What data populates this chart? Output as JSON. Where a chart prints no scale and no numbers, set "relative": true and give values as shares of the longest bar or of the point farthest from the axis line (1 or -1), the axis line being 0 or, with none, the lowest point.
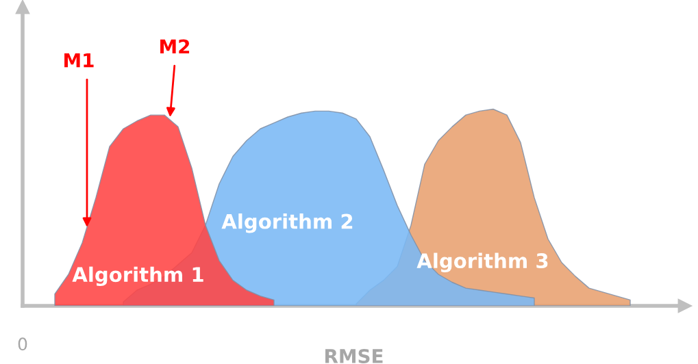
{
  "chart_data": {
    "type": "area",
    "relative": true,
    "xlabel": "RMSE",
    "annotations": [
      "M1",
      "M2",
      "0"
    ],
    "categories": [
      null,
      null,
      null,
      null,
      null,
      null,
      null,
      null,
      null,
      null,
      null,
      null,
      null,
      null,
      null,
      null,
      null,
      null,
      null,
      null,
      null,
      null,
      null,
      null,
      null,
      null,
      null,
      null,
      null,
      null,
      null,
      null,
      null,
      null,
      null,
      null,
      null,
      null,
      null,
      null,
      null,
      null,
      null,
      null
    ],
    "series": [
      {
        "name": "Algorithm 1",
        "color": "#ff4444",
        "values": [
          null,
          0.06,
          0.16,
          0.32,
          0.55,
          0.81,
          0.9,
          0.94,
          0.97,
          0.97,
          0.91,
          0.7,
          0.41,
          0.23,
          0.13,
          0.08,
          0.05,
          0.03,
          null,
          null,
          null,
          null,
          null,
          null,
          null,
          null,
          null,
          null,
          null,
          null,
          null,
          null,
          null,
          null,
          null,
          null,
          null,
          null,
          null,
          null,
          null,
          null,
          null,
          null
        ]
      },
      {
        "name": "Algorithm 2",
        "color": "#7ab8f5",
        "values": [
          null,
          null,
          null,
          null,
          null,
          null,
          0.02,
          0.08,
          0.11,
          0.15,
          0.21,
          0.27,
          0.41,
          0.62,
          0.76,
          0.84,
          0.9,
          0.93,
          0.96,
          0.98,
          0.99,
          0.99,
          0.98,
          0.95,
          0.86,
          0.69,
          0.51,
          0.36,
          0.23,
          0.16,
          0.12,
          0.09,
          0.08,
          0.07,
          0.06,
          0.05,
          0.04,
          null,
          null,
          null,
          null,
          null,
          null,
          null
        ]
      },
      {
        "name": "Algorithm 3",
        "color": "#e8a070",
        "values": [
          null,
          null,
          null,
          null,
          null,
          null,
          null,
          null,
          null,
          null,
          null,
          null,
          null,
          null,
          null,
          null,
          null,
          null,
          null,
          null,
          null,
          null,
          null,
          0.01,
          0.08,
          0.13,
          0.2,
          0.41,
          0.72,
          0.84,
          0.91,
          0.97,
          0.99,
          1,
          0.97,
          0.83,
          0.55,
          0.34,
          0.22,
          0.15,
          0.09,
          0.07,
          0.05,
          0.03
        ]
      }
    ]
  }
}
